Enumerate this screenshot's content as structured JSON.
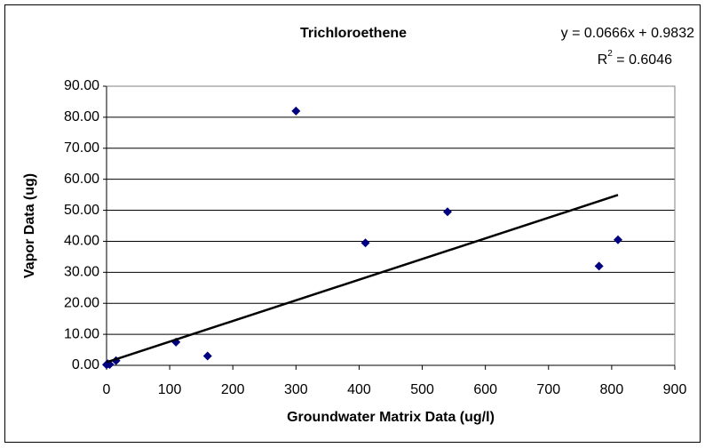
{
  "chart_data": {
    "type": "scatter",
    "title": "Trichloroethene",
    "x_label": "Groundwater Matrix Data (ug/l)",
    "y_label": "Vapor Data (ug)",
    "series": [
      {
        "color": "#000080",
        "x": [
          0,
          2,
          5,
          15,
          110,
          160,
          300,
          410,
          540,
          780,
          810
        ],
        "values": [
          0.2,
          0.5,
          0.3,
          1.5,
          7.5,
          3,
          82,
          39.5,
          49.5,
          32,
          40.5
        ]
      }
    ],
    "trendline": {
      "slope": 0.0666,
      "intercept": 0.9832,
      "x_range": [
        0,
        810
      ],
      "color": "#000000",
      "label": "y = 0.0666x + 0.9832",
      "r2_label": {
        "base": "R",
        "sup": "2",
        "rest": " = 0.6046"
      }
    },
    "xlim": [
      0,
      900
    ],
    "xticks": [
      0,
      100,
      200,
      300,
      400,
      500,
      600,
      700,
      800,
      900
    ],
    "ylim": [
      0,
      90
    ],
    "yticks": [
      {
        "value": 0,
        "label": "0.00"
      },
      {
        "value": 10,
        "label": "10.00"
      },
      {
        "value": 20,
        "label": "20.00"
      },
      {
        "value": 30,
        "label": "30.00"
      },
      {
        "value": 40,
        "label": "40.00"
      },
      {
        "value": 50,
        "label": "50.00"
      },
      {
        "value": 60,
        "label": "60.00"
      },
      {
        "value": 70,
        "label": "70.00"
      },
      {
        "value": 80,
        "label": "80.00"
      },
      {
        "value": 90,
        "label": "90.00"
      }
    ],
    "grid": true
  }
}
